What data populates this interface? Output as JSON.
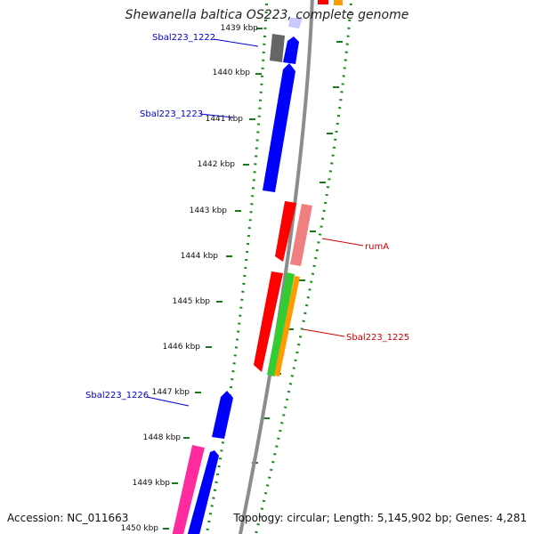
{
  "title": "Shewanella baltica OS223, complete genome",
  "footer": {
    "accession": "Accession: NC_011663",
    "summary": "Topology: circular; Length: 5,145,902 bp; Genes: 4,281"
  },
  "colors": {
    "backbone": "#8c8c8c",
    "tick_dots": "#1a8a1a",
    "ticks": "#1a7a1a",
    "label_blue": "#0000cc",
    "label_red": "#cc0000"
  },
  "ticks": [
    {
      "label": "1439 kbp"
    },
    {
      "label": "1440 kbp"
    },
    {
      "label": "1441 kbp"
    },
    {
      "label": "1442 kbp"
    },
    {
      "label": "1443 kbp"
    },
    {
      "label": "1444 kbp"
    },
    {
      "label": "1445 kbp"
    },
    {
      "label": "1446 kbp"
    },
    {
      "label": "1447 kbp"
    },
    {
      "label": "1448 kbp"
    },
    {
      "label": "1449 kbp"
    },
    {
      "label": "1450 kbp"
    }
  ],
  "gene_labels": [
    {
      "text": "Sbal223_1222",
      "color": "#0000cc"
    },
    {
      "text": "Sbal223_1223",
      "color": "#0000cc"
    },
    {
      "text": "rumA",
      "color": "#cc0000"
    },
    {
      "text": "Sbal223_1225",
      "color": "#cc0000"
    },
    {
      "text": "Sbal223_1226",
      "color": "#0000cc"
    }
  ]
}
